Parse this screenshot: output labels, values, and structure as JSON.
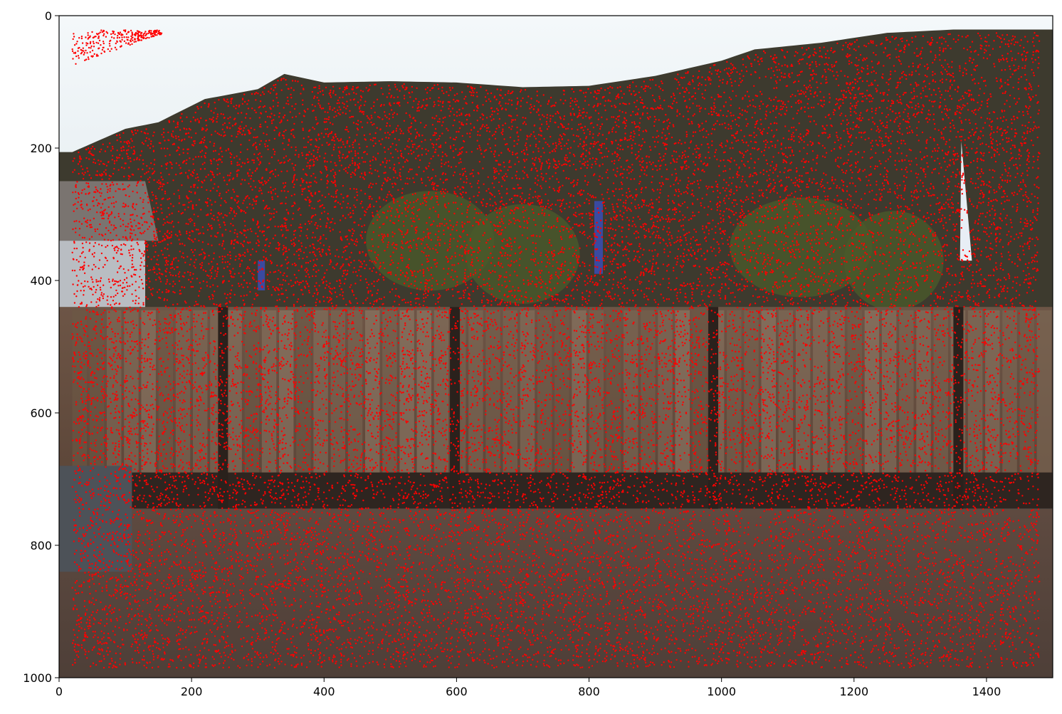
{
  "chart_data": {
    "type": "scatter",
    "title": "",
    "xlabel": "",
    "ylabel": "",
    "xlim": [
      0,
      1500
    ],
    "ylim": [
      1000,
      0
    ],
    "y_inverted": true,
    "grid": false,
    "xticks": [
      0,
      200,
      400,
      600,
      800,
      1000,
      1200,
      1400
    ],
    "yticks": [
      0,
      200,
      400,
      600,
      800,
      1000
    ],
    "xtick_labels": [
      "0",
      "200",
      "400",
      "600",
      "800",
      "1000",
      "1200",
      "1400"
    ],
    "ytick_labels": [
      "0",
      "200",
      "400",
      "600",
      "800",
      "1000"
    ],
    "background_image": "photo of a backyard with a wooden fence in front of a tree-covered hill",
    "series": [
      {
        "marker_color": "#ff0000",
        "marker": "dot",
        "description": "dense keypoint detections covering nearly the whole photo below the hill skyline, plus a small cluster in the top-left sky",
        "x_range": [
          20,
          1480
        ],
        "y_range": [
          22,
          985
        ],
        "estimated_point_count": 30000,
        "upper_boundary": {
          "x": [
            20,
            100,
            150,
            220,
            300,
            340,
            400,
            500,
            600,
            700,
            800,
            900,
            1000,
            1050,
            1150,
            1250,
            1350,
            1480
          ],
          "y": [
            210,
            175,
            165,
            130,
            115,
            92,
            105,
            103,
            105,
            112,
            110,
            95,
            72,
            55,
            45,
            30,
            25,
            25
          ]
        },
        "extra_cluster": {
          "x_range": [
            20,
            155
          ],
          "y_range": [
            22,
            75
          ]
        }
      }
    ]
  },
  "colors": {
    "points": "#ff0000",
    "axes": "#000000",
    "background": "#ffffff"
  }
}
